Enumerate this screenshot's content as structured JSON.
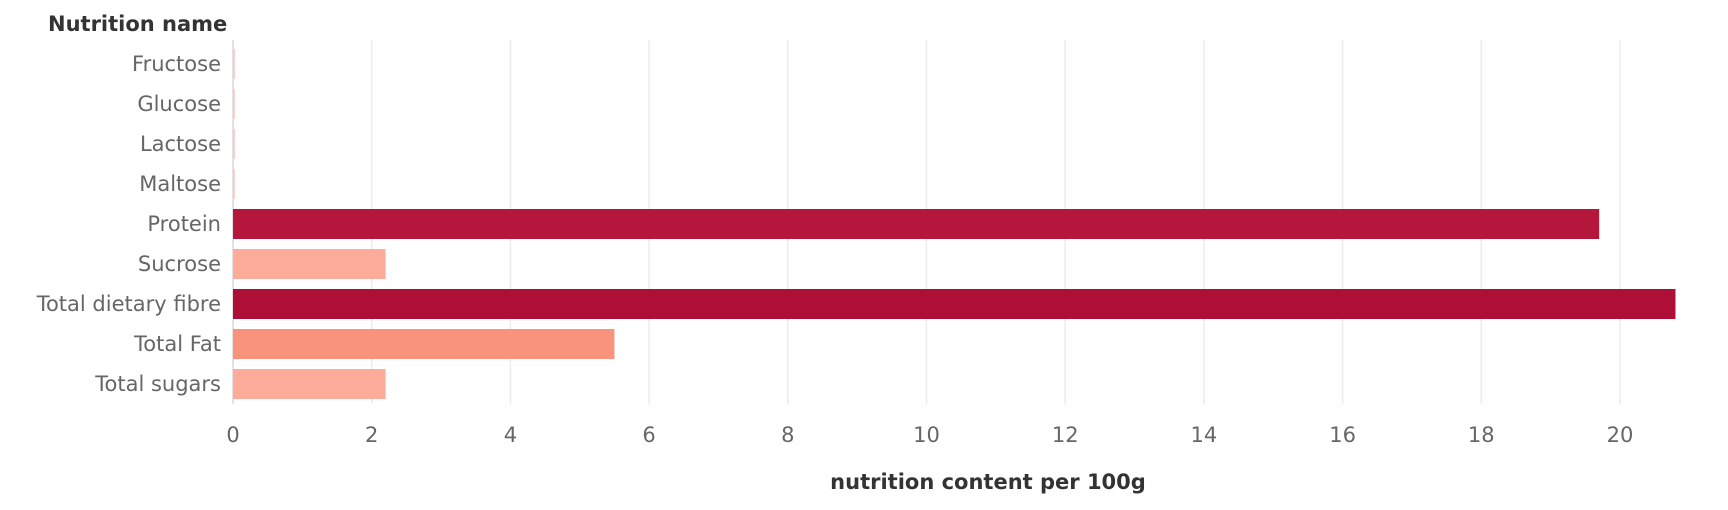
{
  "chart_data": {
    "type": "bar",
    "orientation": "horizontal",
    "row_header": "Nutrition name",
    "categories": [
      "Fructose",
      "Glucose",
      "Lactose",
      "Maltose",
      "Protein",
      "Sucrose",
      "Total dietary fibre",
      "Total Fat",
      "Total sugars"
    ],
    "values": [
      0,
      0,
      0,
      0,
      19.7,
      2.2,
      20.8,
      5.5,
      2.2
    ],
    "colors": [
      "#f8d0c8",
      "#f8d0c8",
      "#f8d0c8",
      "#f8d0c8",
      "#b5173c",
      "#fdac9a",
      "#ad0f37",
      "#f9937b",
      "#fdac9a"
    ],
    "xlabel": "nutrition content per 100g",
    "xlim": [
      0,
      21.5
    ],
    "xticks": [
      0,
      2,
      4,
      6,
      8,
      10,
      12,
      14,
      16,
      18,
      20
    ],
    "grid": true
  }
}
